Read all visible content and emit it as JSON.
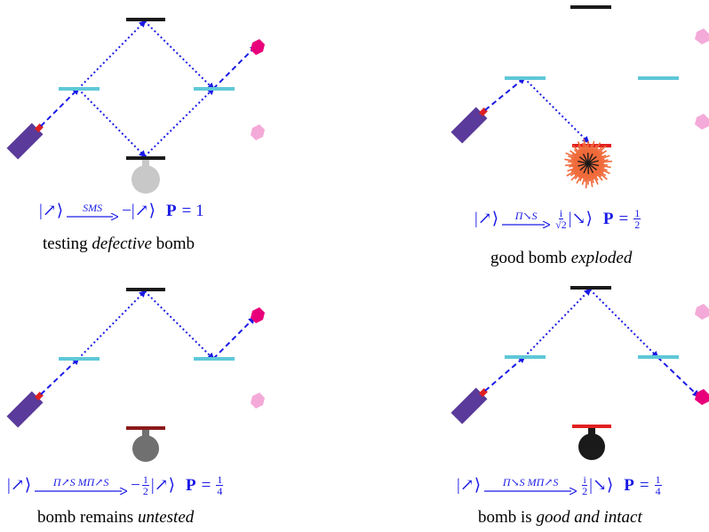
{
  "panels": [
    {
      "equation": {
        "ket_in": "|↗⟩",
        "operator": "SMS",
        "result_prefix": "−",
        "ket_out": "|↗⟩",
        "probability_label": "P",
        "probability_value": "= 1"
      },
      "caption": {
        "before": "testing ",
        "emph": "defective",
        "after": " bomb"
      }
    },
    {
      "equation": {
        "ket_in": "|↗⟩",
        "operator": "Π↘S",
        "coeff_num": "i",
        "coeff_den": "√2",
        "ket_out": "|↘⟩",
        "probability_label": "P",
        "probability_value": "=",
        "prob_num": "1",
        "prob_den": "2"
      },
      "caption": {
        "before": "good bomb ",
        "emph": "exploded",
        "after": ""
      }
    },
    {
      "equation": {
        "ket_in": "|↗⟩",
        "operator": "Π↗S MΠ↗S",
        "result_prefix": "−",
        "coeff_num": "1",
        "coeff_den": "2",
        "ket_out": "|↗⟩",
        "probability_label": "P",
        "probability_value": "=",
        "prob_num": "1",
        "prob_den": "4"
      },
      "caption": {
        "before": "bomb remains ",
        "emph": "untested",
        "after": ""
      }
    },
    {
      "equation": {
        "ket_in": "|↗⟩",
        "operator": "Π↘S MΠ↗S",
        "coeff_num": "i",
        "coeff_den": "2",
        "ket_out": "|↘⟩",
        "probability_label": "P",
        "probability_value": "=",
        "prob_num": "1",
        "prob_den": "4"
      },
      "caption": {
        "before": "bomb is ",
        "emph": "good and intact",
        "after": ""
      }
    }
  ],
  "colors": {
    "beam": "#1a1ae6",
    "splitter": "#5ec8d8",
    "mirror": "#1a1a1a",
    "laser_body": "#5a3a9a",
    "laser_tip": "#e02020",
    "detector_on": "#e8007a",
    "detector_off": "#f4aad8",
    "bomb_defective": "#c8c8c8",
    "bomb_untested": "#707070",
    "bomb_good": "#1a1a1a",
    "bomb_plate_red": "#e02020",
    "bomb_plate_dark": "#8b1a1a",
    "explosion": "#f06a3a"
  }
}
